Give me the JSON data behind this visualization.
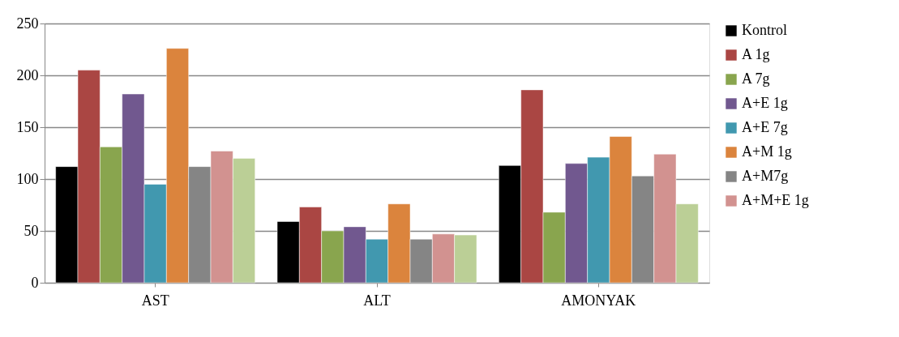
{
  "chart_data": {
    "type": "bar",
    "categories": [
      "AST",
      "ALT",
      "AMONYAK"
    ],
    "series": [
      {
        "name": "Kontrol",
        "color": "#000000",
        "values": [
          112,
          59,
          113
        ]
      },
      {
        "name": "A 1g",
        "color": "#aa4643",
        "values": [
          205,
          73,
          186
        ]
      },
      {
        "name": "A 7g",
        "color": "#89a54e",
        "values": [
          131,
          50,
          68
        ]
      },
      {
        "name": "A+E 1g",
        "color": "#71588f",
        "values": [
          182,
          54,
          115
        ]
      },
      {
        "name": "A+E 7g",
        "color": "#4198af",
        "values": [
          95,
          42,
          121
        ]
      },
      {
        "name": "A+M 1g",
        "color": "#db843d",
        "values": [
          226,
          76,
          141
        ]
      },
      {
        "name": "A+M7g",
        "color": "#858585",
        "values": [
          112,
          42,
          103
        ]
      },
      {
        "name": "A+M+E 1g",
        "color": "#d29290",
        "values": [
          127,
          47,
          124
        ]
      },
      {
        "color": "#bbcf96",
        "values": [
          120,
          46,
          76
        ]
      }
    ],
    "ylim": [
      0,
      250
    ],
    "yticks": [
      0,
      50,
      100,
      150,
      200,
      250
    ],
    "grid": "y",
    "legend": "right"
  }
}
